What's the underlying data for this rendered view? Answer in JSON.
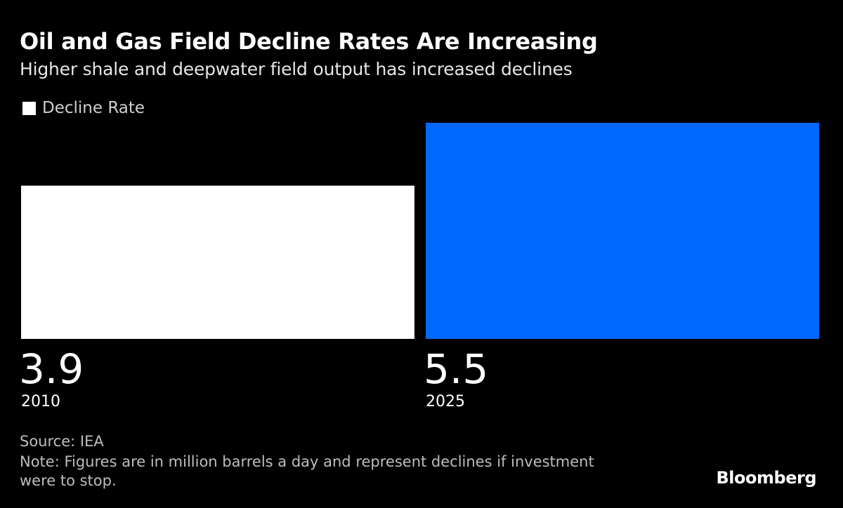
{
  "chart_data": {
    "type": "bar",
    "title": "Oil and Gas Field Decline Rates Are Increasing",
    "subtitle": "Higher shale and deepwater field output has increased declines",
    "legend": {
      "entries": [
        "Decline Rate"
      ],
      "placement": "top-left"
    },
    "categories": [
      "2010",
      "2025"
    ],
    "series": [
      {
        "name": "Decline Rate",
        "values": [
          3.9,
          5.5
        ],
        "colors": [
          "#ffffff",
          "#0068ff"
        ]
      }
    ],
    "data_labels": [
      "3.9",
      "5.5"
    ],
    "ylim": [
      0,
      5.5
    ],
    "grid": false,
    "source": "Source: IEA",
    "note": "Note: Figures are in million barrels a day and represent declines if investment were to stop."
  },
  "branding": {
    "logo": "Bloomberg"
  }
}
